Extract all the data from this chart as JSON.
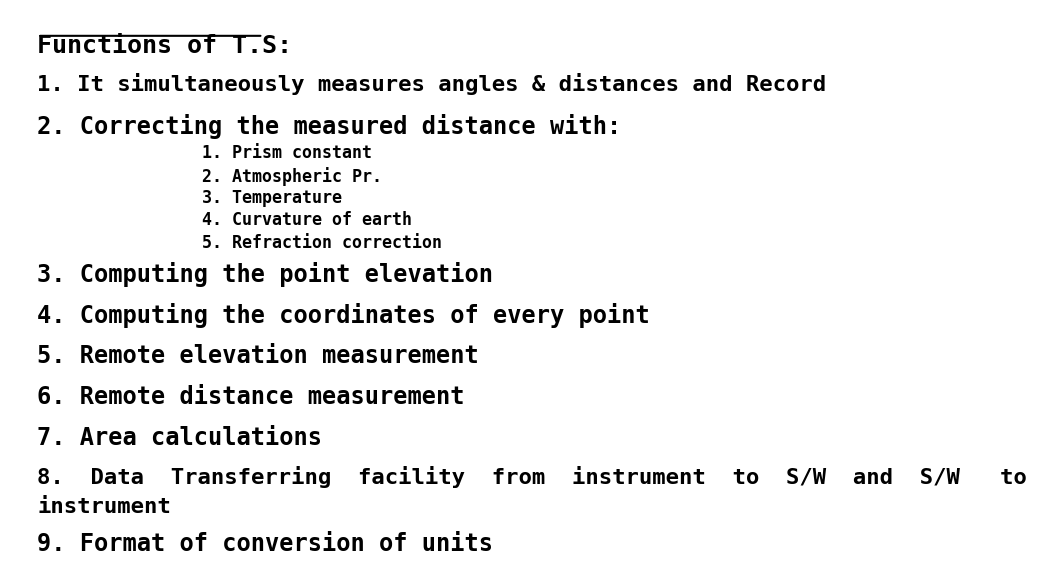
{
  "background_color": "#ffffff",
  "title": "Functions of T.S:",
  "line1": "1. It simultaneously measures angles & distances and Record",
  "line2": "2. Correcting the measured distance with:",
  "sub_items": [
    "1. Prism constant",
    "2. Atmospheric Pr.",
    "3. Temperature",
    "4. Curvature of earth",
    "5. Refraction correction"
  ],
  "line3": "3. Computing the point elevation",
  "line4": "4. Computing the coordinates of every point",
  "line5": "5. Remote elevation measurement",
  "line6": "6. Remote distance measurement",
  "line7": "7. Area calculations",
  "line8": "8.  Data  Transferring  facility  from  instrument  to  S/W  and  S/W   to\ninstrument",
  "line9": "9. Format of conversion of units",
  "text_color": "#000000",
  "title_fontsize": 18,
  "main_fontsize": 17,
  "sub_fontsize": 12,
  "font_family": "DejaVu Sans"
}
